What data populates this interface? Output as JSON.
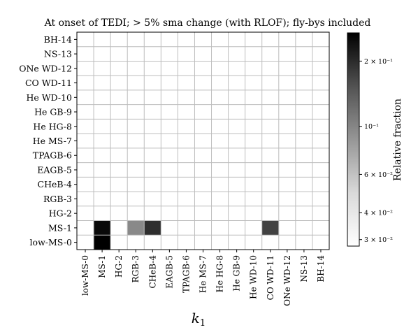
{
  "chart_data": {
    "type": "heatmap",
    "title": "At onset of TEDI; > 5% sma change (with RLOF); fly-bys included",
    "xlabel": "k₁",
    "ylabel": "",
    "x_categories": [
      "low-MS-0",
      "MS-1",
      "HG-2",
      "RGB-3",
      "CHeB-4",
      "EAGB-5",
      "TPAGB-6",
      "He MS-7",
      "He HG-8",
      "He GB-9",
      "He WD-10",
      "CO WD-11",
      "ONe WD-12",
      "NS-13",
      "BH-14"
    ],
    "y_categories": [
      "low-MS-0",
      "MS-1",
      "HG-2",
      "RGB-3",
      "CHeB-4",
      "EAGB-5",
      "TPAGB-6",
      "He MS-7",
      "He HG-8",
      "He GB-9",
      "He WD-10",
      "CO WD-11",
      "ONe WD-12",
      "NS-13",
      "BH-14"
    ],
    "cells": [
      {
        "x": "MS-1",
        "y": "low-MS-0",
        "value": 0.27
      },
      {
        "x": "MS-1",
        "y": "MS-1",
        "value": 0.25
      },
      {
        "x": "RGB-3",
        "y": "MS-1",
        "value": 0.08
      },
      {
        "x": "CHeB-4",
        "y": "MS-1",
        "value": 0.18
      },
      {
        "x": "CO WD-11",
        "y": "MS-1",
        "value": 0.15
      }
    ],
    "colorbar": {
      "label": "Relative fraction",
      "scale": "log",
      "range": [
        0.028,
        0.27
      ],
      "ticks": [
        {
          "value": 0.2,
          "label": "2 × 10⁻¹"
        },
        {
          "value": 0.1,
          "label": "10⁻¹"
        },
        {
          "value": 0.06,
          "label": "6 × 10⁻²"
        },
        {
          "value": 0.04,
          "label": "4 × 10⁻²"
        },
        {
          "value": 0.03,
          "label": "3 × 10⁻²"
        }
      ],
      "colormap": "Greys"
    },
    "grid": true
  }
}
